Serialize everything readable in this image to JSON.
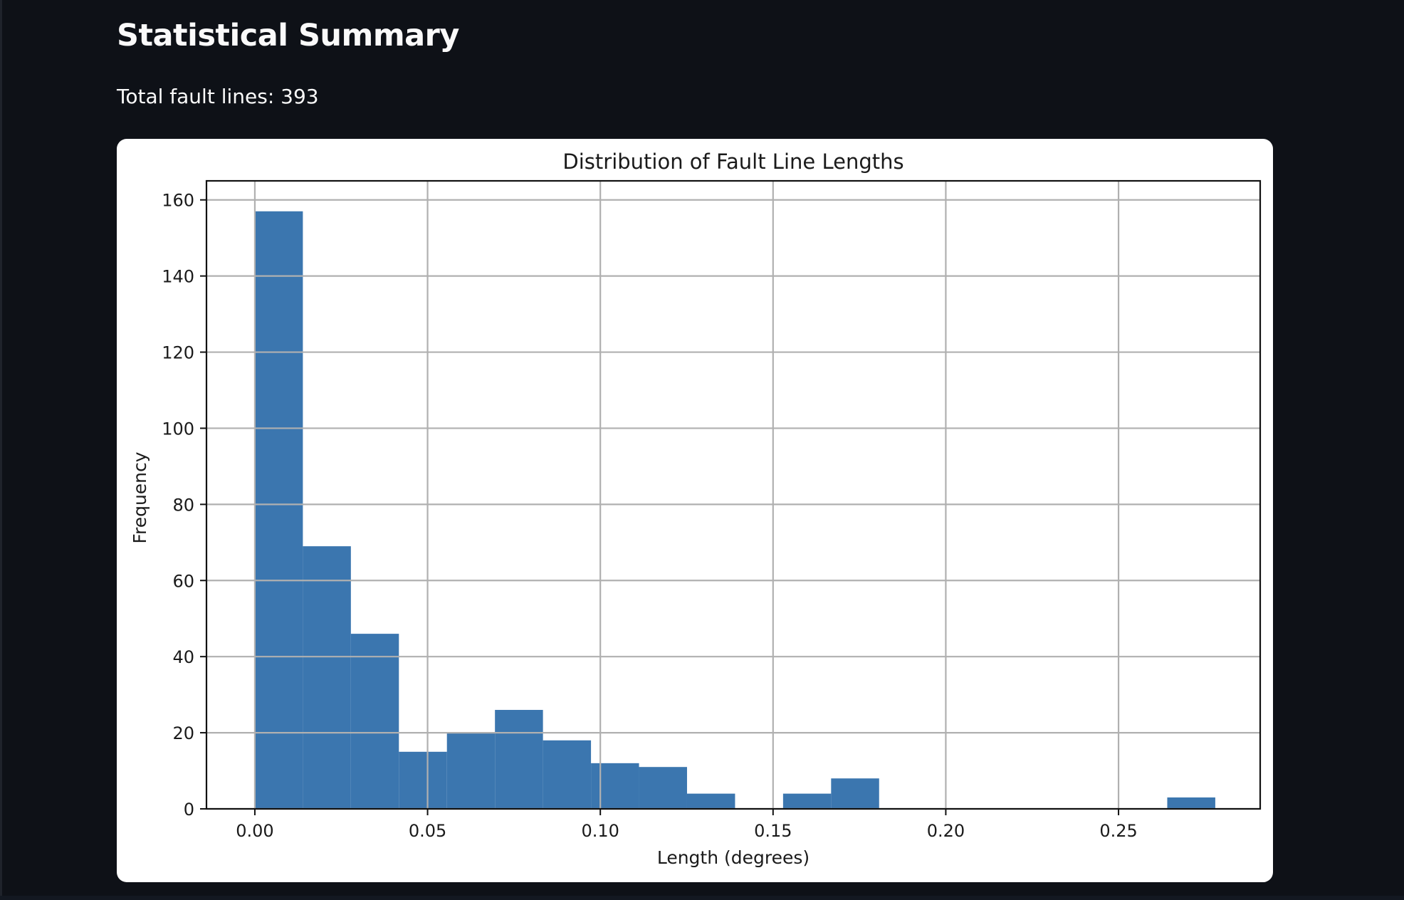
{
  "header": {
    "title": "Statistical Summary",
    "summary": "Total fault lines: 393"
  },
  "colors": {
    "background": "#0e1117",
    "bar": "#3b76af",
    "grid": "#b0b0b0"
  },
  "chart_data": {
    "type": "bar",
    "subtype": "histogram",
    "title": "Distribution of Fault Line Lengths",
    "xlabel": "Length (degrees)",
    "ylabel": "Frequency",
    "xlim": [
      -0.014,
      0.291
    ],
    "ylim": [
      0,
      165
    ],
    "xticks": [
      0.0,
      0.05,
      0.1,
      0.15,
      0.2,
      0.25
    ],
    "xtick_labels": [
      "0.00",
      "0.05",
      "0.10",
      "0.15",
      "0.20",
      "0.25"
    ],
    "yticks": [
      0,
      20,
      40,
      60,
      80,
      100,
      120,
      140,
      160
    ],
    "ytick_labels": [
      "0",
      "20",
      "40",
      "60",
      "80",
      "100",
      "120",
      "140",
      "160"
    ],
    "grid": true,
    "bin_edges": [
      0.0,
      0.0139,
      0.0278,
      0.0417,
      0.0556,
      0.0695,
      0.0834,
      0.0973,
      0.1112,
      0.1251,
      0.139,
      0.1529,
      0.1668,
      0.1807,
      0.1946,
      0.2085,
      0.2224,
      0.2363,
      0.2502,
      0.2641,
      0.278
    ],
    "values": [
      157,
      69,
      46,
      15,
      20,
      26,
      18,
      12,
      11,
      4,
      0,
      4,
      8,
      0,
      0,
      0,
      0,
      0,
      0,
      3
    ]
  }
}
